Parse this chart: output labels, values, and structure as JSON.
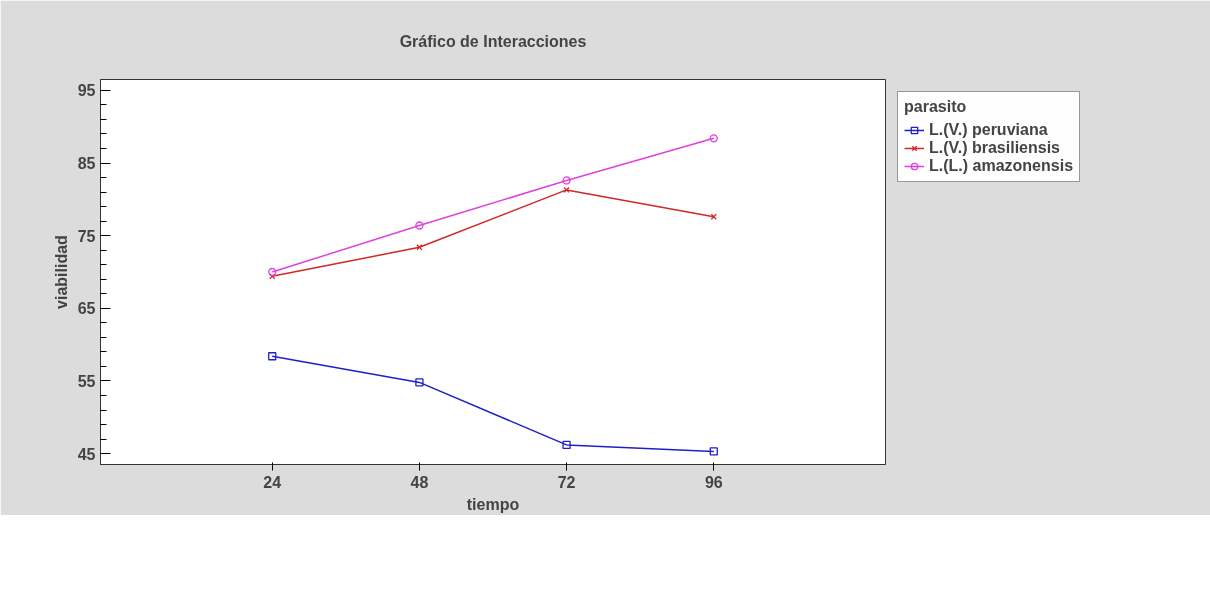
{
  "chart_data": {
    "type": "line",
    "title": "Gráfico de Interacciones",
    "xlabel": "tiempo",
    "ylabel": "viabilidad",
    "legend_title": "parasito",
    "x": [
      24,
      48,
      72,
      96
    ],
    "xlim": [
      -4,
      124
    ],
    "xticks": [
      24,
      48,
      72,
      96
    ],
    "ylim": [
      43.5,
      96.5
    ],
    "yticks": [
      45,
      55,
      65,
      75,
      85,
      95
    ],
    "grid": false,
    "legend": "top right",
    "series": [
      {
        "name": "L.(V.) peruviana",
        "color": "#2020c8",
        "marker": "square",
        "values": [
          58.4,
          54.8,
          46.2,
          45.3
        ]
      },
      {
        "name": "L.(V.) brasiliensis",
        "color": "#d02828",
        "marker": "cross",
        "values": [
          69.4,
          73.4,
          81.3,
          77.6
        ]
      },
      {
        "name": "L.(L.) amazonensis",
        "color": "#e040e0",
        "marker": "circle",
        "values": [
          70.0,
          76.4,
          82.6,
          88.4
        ]
      }
    ]
  }
}
